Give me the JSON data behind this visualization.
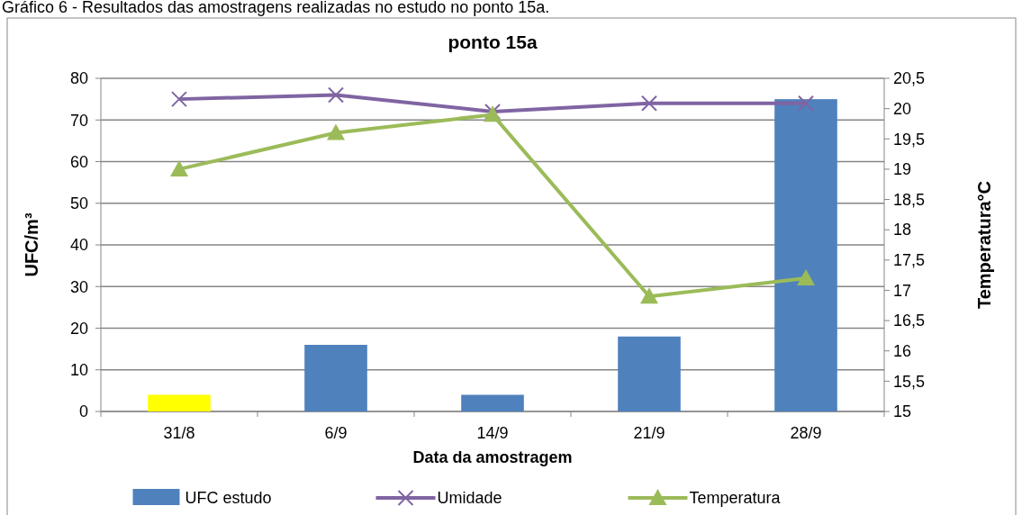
{
  "chart_data": {
    "type": "bar",
    "title": "ponto 15a",
    "xlabel": "Data da amostragem",
    "ylabel": "UFC/m³",
    "y2label": "Temperatura°C",
    "annotations": [
      "Gráfico 6 - Resultados das amostragens realizadas no estudo no ponto 15a."
    ],
    "categories": [
      "31/8",
      "6/9",
      "14/9",
      "21/9",
      "28/9"
    ],
    "series": [
      {
        "name": "UFC estudo",
        "color": "#4f81bd",
        "colors": [
          "#ffff00",
          "#4f81bd",
          "#4f81bd",
          "#4f81bd",
          "#4f81bd"
        ],
        "values": [
          4,
          16,
          4,
          18,
          75
        ]
      },
      {
        "name": "Umidade",
        "type": "line",
        "color": "#8064a2",
        "marker": "cross",
        "values": [
          75,
          76,
          72,
          74,
          74
        ]
      },
      {
        "name": "Temperatura",
        "type": "line",
        "color": "#9bbb59",
        "marker": "triangle",
        "axis": "y2",
        "values": [
          19.0,
          19.6,
          19.9,
          16.9,
          17.2
        ]
      }
    ],
    "ylim": [
      0,
      80
    ],
    "yticks": [
      0,
      10,
      20,
      30,
      40,
      50,
      60,
      70,
      80
    ],
    "y2lim": [
      15,
      20.5
    ],
    "y2ticks": [
      15,
      {
        "value": 15.5,
        "label": "15,5"
      },
      16,
      {
        "value": 16.5,
        "label": "16,5"
      },
      17,
      {
        "value": 17.5,
        "label": "17,5"
      },
      18,
      {
        "value": 18.5,
        "label": "18,5"
      },
      19,
      {
        "value": 19.5,
        "label": "19,5"
      },
      20,
      {
        "value": 20.5,
        "label": "20,5"
      }
    ],
    "grid": "y",
    "legend": "bottom",
    "line_style": "solid"
  }
}
